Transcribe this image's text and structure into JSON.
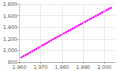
{
  "chart_data": {
    "type": "line",
    "x": [
      1961,
      1962,
      1963,
      1964,
      1965,
      1966,
      1967,
      1968,
      1969,
      1970,
      1971,
      1972,
      1973,
      1974,
      1975,
      1976,
      1977,
      1978,
      1979,
      1980,
      1981,
      1982,
      1983,
      1984,
      1985,
      1986,
      1987,
      1988,
      1989,
      1990,
      1991,
      1992,
      1993,
      1994,
      1995,
      1996,
      1997,
      1998,
      1999,
      2000,
      2001,
      2002,
      2003
    ],
    "values": [
      880,
      900,
      921,
      942,
      963,
      984,
      1005,
      1026,
      1047,
      1068,
      1089,
      1110,
      1131,
      1152,
      1173,
      1194,
      1214,
      1234,
      1254,
      1274,
      1294,
      1314,
      1334,
      1354,
      1374,
      1394,
      1414,
      1434,
      1454,
      1474,
      1494,
      1514,
      1534,
      1554,
      1574,
      1594,
      1614,
      1634,
      1654,
      1674,
      1694,
      1714,
      1734
    ],
    "color": "#ff00ff",
    "marker": "circle",
    "xlim": [
      1960,
      2005
    ],
    "xticks": [
      1960,
      1970,
      1980,
      1990,
      2000
    ],
    "ylim": [
      800,
      1800
    ],
    "yticks": [
      800,
      1000,
      1200,
      1400,
      1600,
      1800
    ],
    "grid": true
  }
}
